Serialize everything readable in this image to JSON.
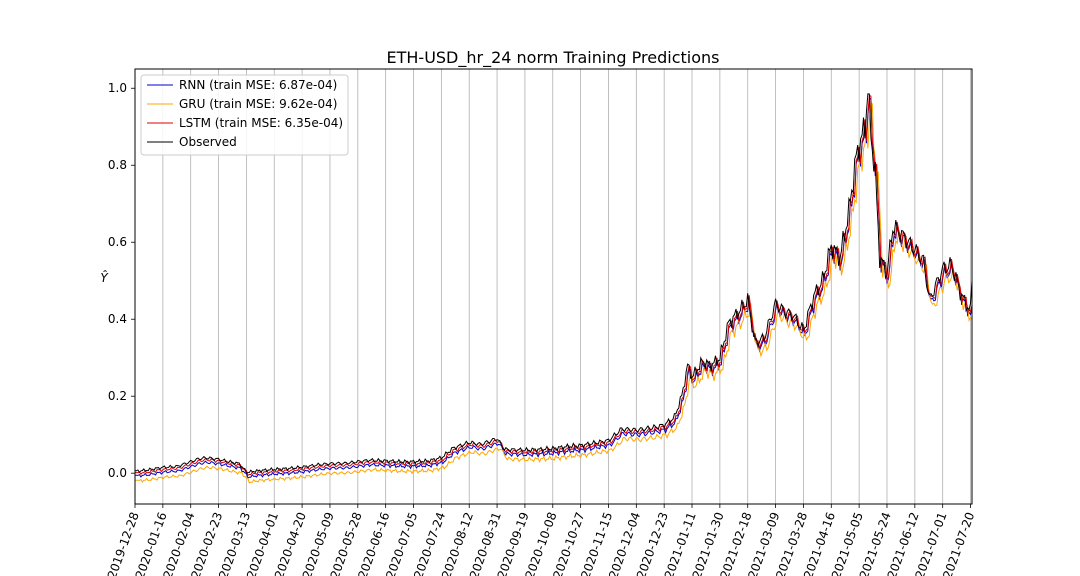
{
  "chart_data": {
    "type": "line",
    "title": "ETH-USD_hr_24 norm Training Predictions",
    "ylabel": "Ŷ",
    "xlabel": "",
    "ylim": [
      -0.08,
      1.05
    ],
    "yticks": [
      0.0,
      0.2,
      0.4,
      0.6,
      0.8,
      1.0
    ],
    "grid": "vertical",
    "legend_position": "top-left",
    "x_ticks": [
      "2019-12-28",
      "2020-01-16",
      "2020-02-04",
      "2020-02-23",
      "2020-03-13",
      "2020-04-01",
      "2020-04-20",
      "2020-05-09",
      "2020-05-28",
      "2020-06-16",
      "2020-07-05",
      "2020-07-24",
      "2020-08-12",
      "2020-08-31",
      "2020-09-19",
      "2020-10-08",
      "2020-10-27",
      "2020-11-15",
      "2020-12-04",
      "2020-12-23",
      "2021-01-11",
      "2021-01-30",
      "2021-02-18",
      "2021-03-09",
      "2021-03-28",
      "2021-04-16",
      "2021-05-05",
      "2021-05-24",
      "2021-06-12",
      "2021-07-01",
      "2021-07-20"
    ],
    "x_start": "2019-12-28",
    "x_end": "2021-07-21",
    "observed": [
      [
        "2019-12-28",
        0.005
      ],
      [
        "2020-01-05",
        0.008
      ],
      [
        "2020-01-16",
        0.015
      ],
      [
        "2020-01-26",
        0.018
      ],
      [
        "2020-02-04",
        0.03
      ],
      [
        "2020-02-10",
        0.038
      ],
      [
        "2020-02-15",
        0.04
      ],
      [
        "2020-02-23",
        0.036
      ],
      [
        "2020-03-01",
        0.03
      ],
      [
        "2020-03-08",
        0.025
      ],
      [
        "2020-03-12",
        0.008
      ],
      [
        "2020-03-13",
        0.002
      ],
      [
        "2020-03-20",
        0.006
      ],
      [
        "2020-04-01",
        0.01
      ],
      [
        "2020-04-10",
        0.012
      ],
      [
        "2020-04-20",
        0.016
      ],
      [
        "2020-05-01",
        0.022
      ],
      [
        "2020-05-09",
        0.025
      ],
      [
        "2020-05-20",
        0.026
      ],
      [
        "2020-05-28",
        0.03
      ],
      [
        "2020-06-05",
        0.034
      ],
      [
        "2020-06-16",
        0.032
      ],
      [
        "2020-06-25",
        0.03
      ],
      [
        "2020-07-05",
        0.03
      ],
      [
        "2020-07-15",
        0.032
      ],
      [
        "2020-07-24",
        0.04
      ],
      [
        "2020-08-01",
        0.065
      ],
      [
        "2020-08-12",
        0.08
      ],
      [
        "2020-08-20",
        0.075
      ],
      [
        "2020-08-31",
        0.09
      ],
      [
        "2020-09-05",
        0.062
      ],
      [
        "2020-09-19",
        0.06
      ],
      [
        "2020-10-01",
        0.062
      ],
      [
        "2020-10-08",
        0.064
      ],
      [
        "2020-10-20",
        0.07
      ],
      [
        "2020-10-27",
        0.072
      ],
      [
        "2020-11-05",
        0.078
      ],
      [
        "2020-11-15",
        0.085
      ],
      [
        "2020-11-24",
        0.115
      ],
      [
        "2020-12-04",
        0.112
      ],
      [
        "2020-12-15",
        0.118
      ],
      [
        "2020-12-23",
        0.125
      ],
      [
        "2020-12-30",
        0.145
      ],
      [
        "2021-01-04",
        0.2
      ],
      [
        "2021-01-08",
        0.28
      ],
      [
        "2021-01-11",
        0.25
      ],
      [
        "2021-01-18",
        0.29
      ],
      [
        "2021-01-24",
        0.28
      ],
      [
        "2021-01-30",
        0.3
      ],
      [
        "2021-02-05",
        0.39
      ],
      [
        "2021-02-12",
        0.42
      ],
      [
        "2021-02-18",
        0.45
      ],
      [
        "2021-02-23",
        0.34
      ],
      [
        "2021-03-01",
        0.35
      ],
      [
        "2021-03-09",
        0.44
      ],
      [
        "2021-03-15",
        0.42
      ],
      [
        "2021-03-21",
        0.41
      ],
      [
        "2021-03-28",
        0.37
      ],
      [
        "2021-04-04",
        0.46
      ],
      [
        "2021-04-10",
        0.5
      ],
      [
        "2021-04-16",
        0.59
      ],
      [
        "2021-04-22",
        0.56
      ],
      [
        "2021-04-28",
        0.68
      ],
      [
        "2021-05-03",
        0.82
      ],
      [
        "2021-05-05",
        0.85
      ],
      [
        "2021-05-09",
        0.9
      ],
      [
        "2021-05-11",
        1.0
      ],
      [
        "2021-05-13",
        0.88
      ],
      [
        "2021-05-16",
        0.78
      ],
      [
        "2021-05-19",
        0.56
      ],
      [
        "2021-05-24",
        0.52
      ],
      [
        "2021-05-28",
        0.64
      ],
      [
        "2021-06-03",
        0.62
      ],
      [
        "2021-06-12",
        0.58
      ],
      [
        "2021-06-18",
        0.55
      ],
      [
        "2021-06-22",
        0.45
      ],
      [
        "2021-07-01",
        0.53
      ],
      [
        "2021-07-07",
        0.54
      ],
      [
        "2021-07-14",
        0.46
      ],
      [
        "2021-07-20",
        0.42
      ],
      [
        "2021-07-21",
        0.51
      ]
    ],
    "series": [
      {
        "name": "RNN (train MSE: 6.87e-04)",
        "color": "#0000cc",
        "offset": -0.012,
        "lag_days": 1
      },
      {
        "name": "GRU (train MSE: 9.62e-04)",
        "color": "#ffa500",
        "offset": -0.025,
        "lag_days": 2
      },
      {
        "name": "LSTM (train MSE: 6.35e-04)",
        "color": "#dd0000",
        "offset": -0.005,
        "lag_days": 1
      },
      {
        "name": "Observed",
        "color": "#000000",
        "offset": 0.0,
        "lag_days": 0
      }
    ]
  }
}
